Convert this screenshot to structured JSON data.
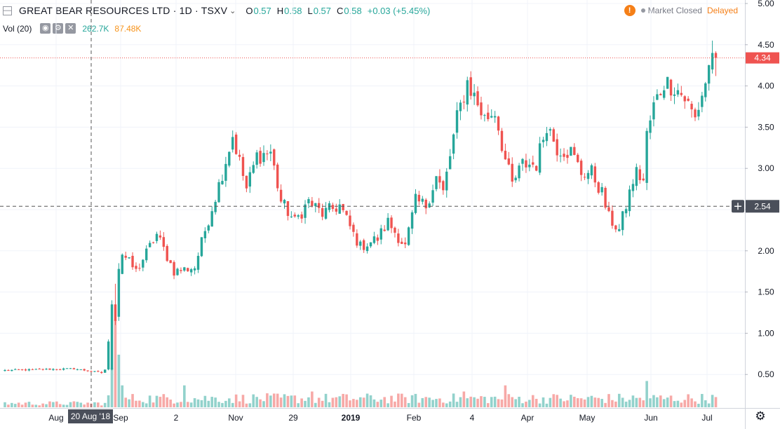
{
  "header": {
    "menu_icon": "menu-square-icon",
    "symbol": "GREAT BEAR RESOURCES LTD · 1D · TSXV",
    "ohlc": [
      {
        "label": "O",
        "value": "0.57"
      },
      {
        "label": "H",
        "value": "0.58"
      },
      {
        "label": "L",
        "value": "0.57"
      },
      {
        "label": "C",
        "value": "0.58"
      }
    ],
    "change": "+0.03 (+5.45%)",
    "volume_label": "Vol (20)",
    "volume_value": "262.7K",
    "volume_ma": "87.48K",
    "market_status": "Market Closed",
    "delayed": "Delayed",
    "warning_icon": "!"
  },
  "colors": {
    "up": "#26a69a",
    "down": "#ef5350",
    "up_vol": "#92d2cc",
    "down_vol": "#f7a9a7",
    "price_line": "#ef5350",
    "crosshair": "#555555"
  },
  "chart_data": {
    "type": "candlestick",
    "y_ticks": [
      "5.00",
      "4.50",
      "4.00",
      "3.50",
      "3.00",
      "2.50",
      "2.00",
      "1.50",
      "1.00",
      "0.50"
    ],
    "x_ticks": [
      "Aug",
      "Sep",
      "2",
      "Nov",
      "29",
      "2019",
      "Feb",
      "4",
      "Apr",
      "May",
      "Jun",
      "Jul"
    ],
    "ylim": [
      0.12,
      5.0
    ],
    "last_price": "4.34",
    "crosshair_price": "2.54",
    "crosshair_date": "20 Aug '18",
    "close_anchors": [
      [
        0,
        0.55
      ],
      [
        20,
        0.57
      ],
      [
        28,
        0.52
      ],
      [
        29,
        0.56
      ],
      [
        31,
        1.2
      ],
      [
        33,
        1.75
      ],
      [
        34,
        1.97
      ],
      [
        38,
        1.75
      ],
      [
        44,
        2.2
      ],
      [
        49,
        1.75
      ],
      [
        55,
        1.8
      ],
      [
        58,
        2.25
      ],
      [
        62,
        2.8
      ],
      [
        66,
        3.4
      ],
      [
        70,
        2.75
      ],
      [
        73,
        3.15
      ],
      [
        77,
        3.2
      ],
      [
        80,
        2.6
      ],
      [
        84,
        2.35
      ],
      [
        88,
        2.6
      ],
      [
        92,
        2.45
      ],
      [
        97,
        2.55
      ],
      [
        101,
        2.2
      ],
      [
        103,
        2.05
      ],
      [
        108,
        2.15
      ],
      [
        111,
        2.35
      ],
      [
        116,
        2.05
      ],
      [
        119,
        2.6
      ],
      [
        122,
        2.55
      ],
      [
        125,
        2.9
      ],
      [
        127,
        2.7
      ],
      [
        131,
        3.6
      ],
      [
        134,
        4.05
      ],
      [
        139,
        3.6
      ],
      [
        142,
        3.7
      ],
      [
        145,
        3.1
      ],
      [
        147,
        2.8
      ],
      [
        150,
        3.05
      ],
      [
        154,
        3.05
      ],
      [
        157,
        3.55
      ],
      [
        160,
        3.25
      ],
      [
        164,
        3.2
      ],
      [
        167,
        2.95
      ],
      [
        170,
        2.95
      ],
      [
        173,
        2.7
      ],
      [
        175,
        2.4
      ],
      [
        178,
        2.25
      ],
      [
        180,
        2.55
      ],
      [
        182,
        2.85
      ],
      [
        183,
        2.95
      ],
      [
        185,
        2.85
      ],
      [
        186,
        3.4
      ],
      [
        188,
        3.75
      ],
      [
        191,
        4.05
      ],
      [
        194,
        4.0
      ],
      [
        197,
        3.85
      ],
      [
        200,
        3.6
      ],
      [
        203,
        4.05
      ],
      [
        205,
        4.4
      ],
      [
        206,
        4.34
      ]
    ],
    "vol_spikes": [
      [
        31,
        0.45
      ],
      [
        32,
        1.0
      ],
      [
        33,
        0.6
      ],
      [
        34,
        0.25
      ],
      [
        52,
        0.25
      ],
      [
        89,
        0.18
      ],
      [
        133,
        0.18
      ],
      [
        145,
        0.25
      ],
      [
        186,
        0.3
      ]
    ]
  }
}
